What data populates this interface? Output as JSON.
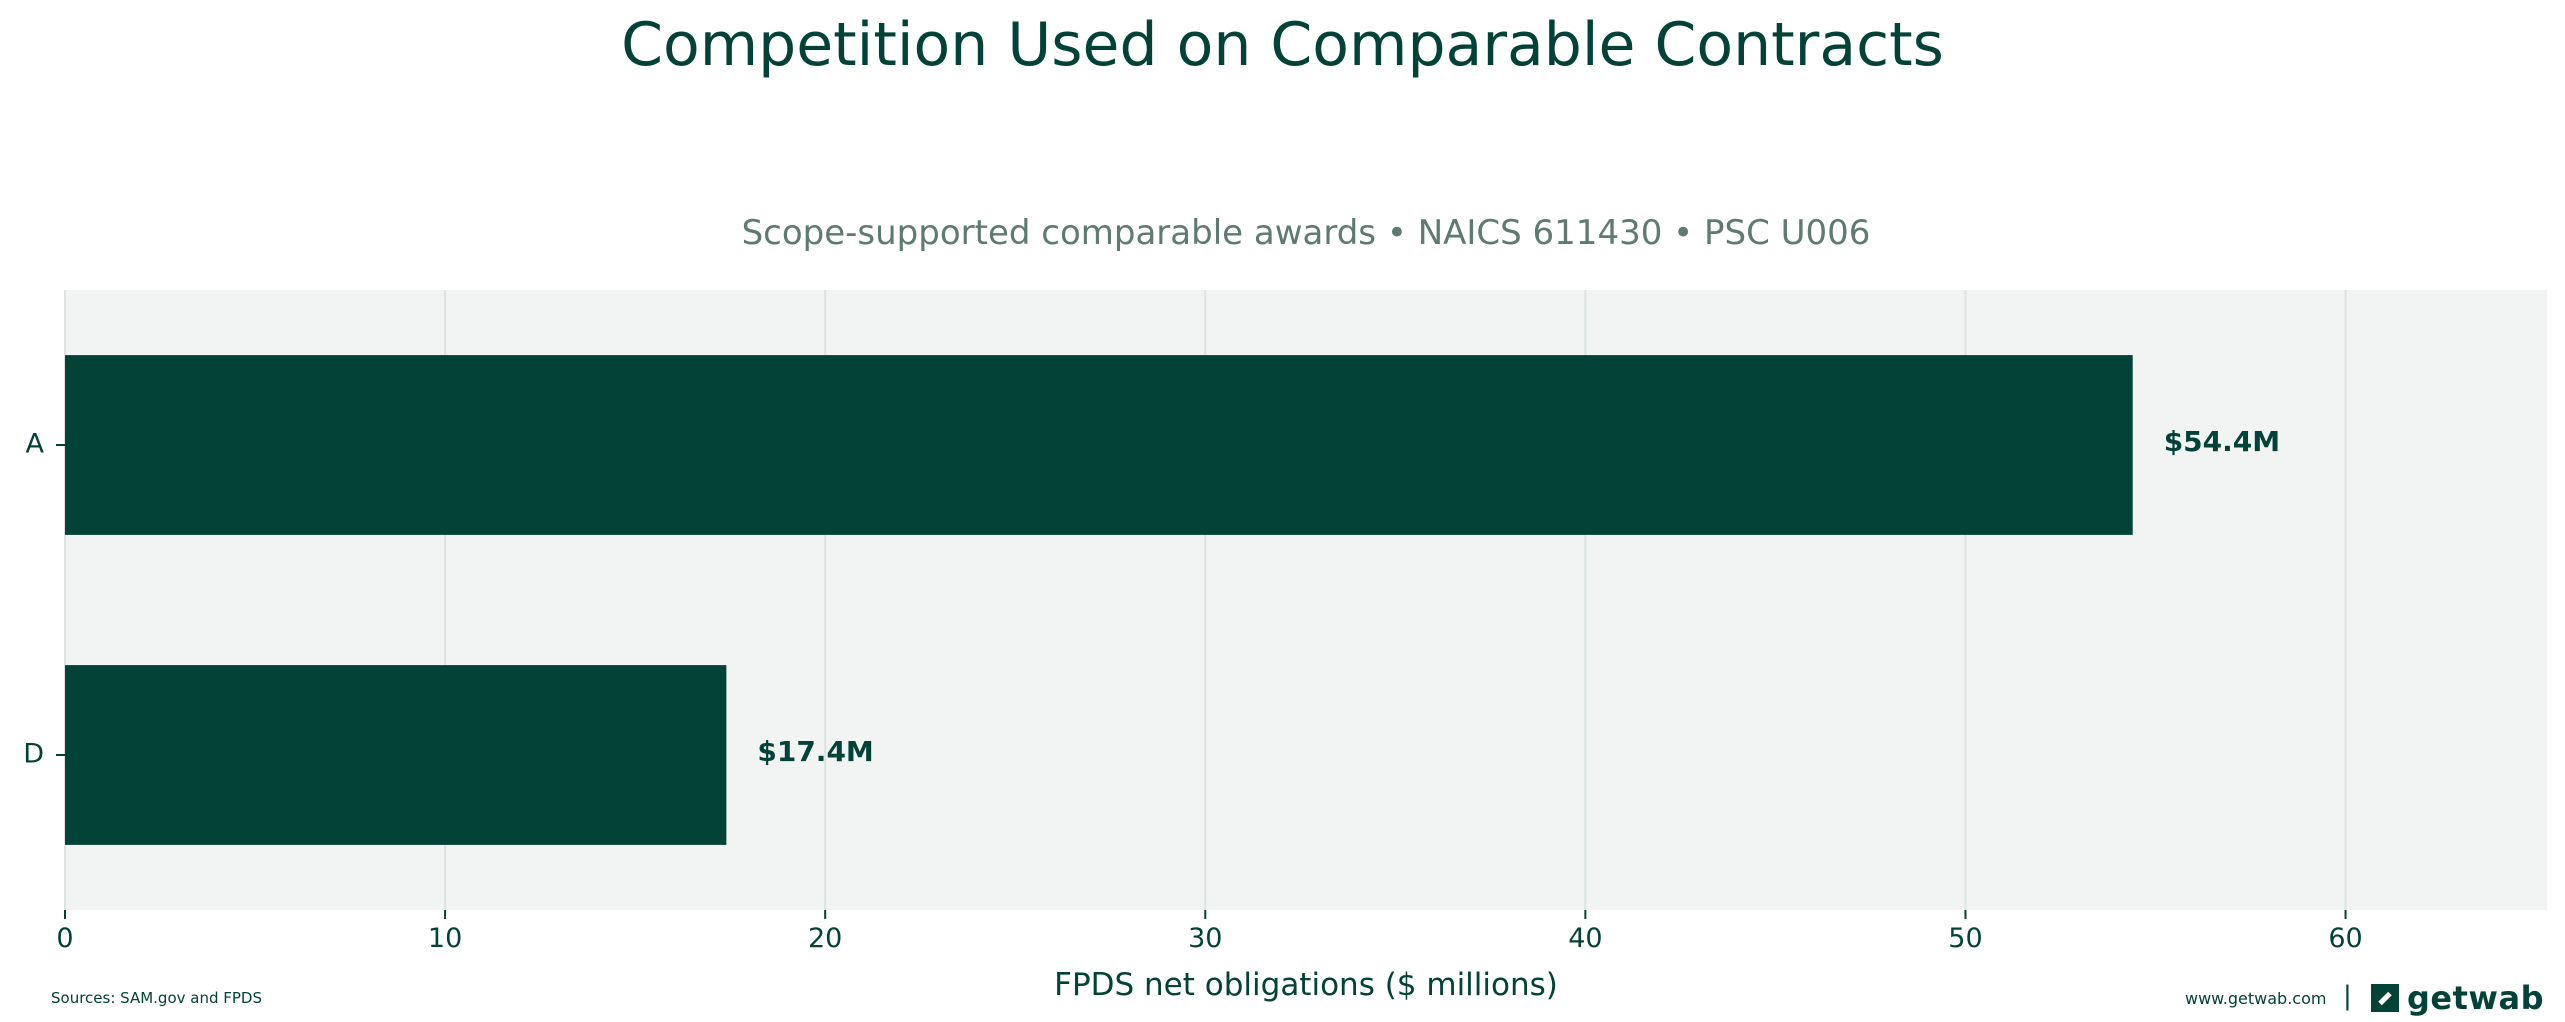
{
  "title": "Competition Used on Comparable Contracts",
  "subtitle": "Scope-supported comparable awards • NAICS 611430 • PSC U006",
  "colors": {
    "bar": "#024237",
    "plot_bg": "#f2f4f3",
    "grid": "#dde3e1",
    "text": "#024237",
    "subtitle": "#5e7a72"
  },
  "chart_data": {
    "type": "bar",
    "orientation": "horizontal",
    "categories": [
      "A",
      "D"
    ],
    "values": [
      54.4,
      17.4
    ],
    "data_labels": [
      "$54.4M",
      "$17.4M"
    ],
    "xlabel": "FPDS net obligations ($ millions)",
    "ylabel": "",
    "xlim": [
      0,
      65.3
    ],
    "xticks": [
      0,
      10,
      20,
      30,
      40,
      50,
      60
    ],
    "grid": "vertical"
  },
  "footer": {
    "source": "Sources: SAM.gov and FPDS",
    "site": "www.getwab.com",
    "separator": "|",
    "logo_text": "getwab",
    "logo_icon": "getwab-logo-icon"
  }
}
